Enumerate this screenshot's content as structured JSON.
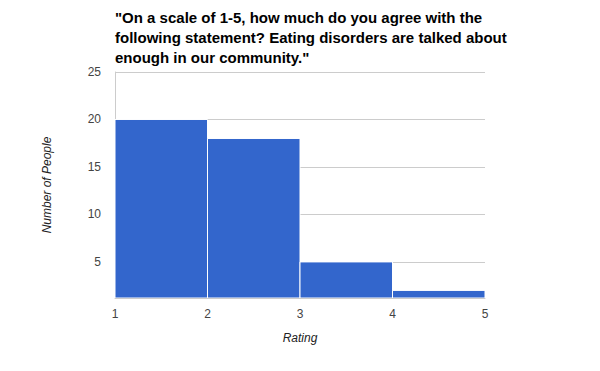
{
  "chart_data": {
    "type": "histogram",
    "title": "\"On a scale of 1-5, how much do you agree with the following statement? Eating disorders are talked about enough in our community.\"",
    "xlabel": "Rating",
    "ylabel": "Number of People",
    "bins": [
      1,
      2,
      3,
      4,
      5
    ],
    "values": [
      20,
      18,
      5,
      2
    ],
    "color": "#3366cc",
    "xlim": [
      1,
      5
    ],
    "xticks": [
      1,
      2,
      3,
      4,
      5
    ],
    "ylim": [
      1.2,
      25
    ],
    "yticks": [
      5,
      10,
      15,
      20,
      25
    ],
    "grid": true
  }
}
